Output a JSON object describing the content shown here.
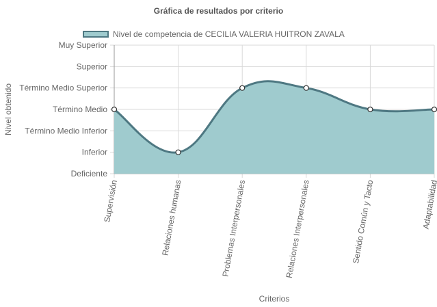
{
  "chart_data": {
    "type": "area",
    "title": "Gráfica de resultados por criterio",
    "xlabel": "Criterios",
    "ylabel": "Nivel obtenido",
    "categories": [
      "Supervisión",
      "Relaciones humanas",
      "Problemas Interpersonales",
      "Relaciones Interpersonales",
      "Sentido Común y Tacto",
      "Adaptabilidad"
    ],
    "y_levels": [
      "Deficiente",
      "Inferior",
      "Término Medio Inferior",
      "Término Medio",
      "Término Medio Superior",
      "Superior",
      "Muy Superior"
    ],
    "ylim": [
      0,
      6
    ],
    "series": [
      {
        "name": "Nivel de competencia de CECILIA VALERIA HUITRON ZAVALA",
        "values": [
          3,
          1,
          4,
          4,
          3,
          3
        ]
      }
    ],
    "legend_position": "top",
    "grid": true,
    "colors": {
      "fill": "#9fcbce",
      "line": "#4e7882",
      "grid": "#d9d9d9",
      "axis": "#999999"
    }
  }
}
